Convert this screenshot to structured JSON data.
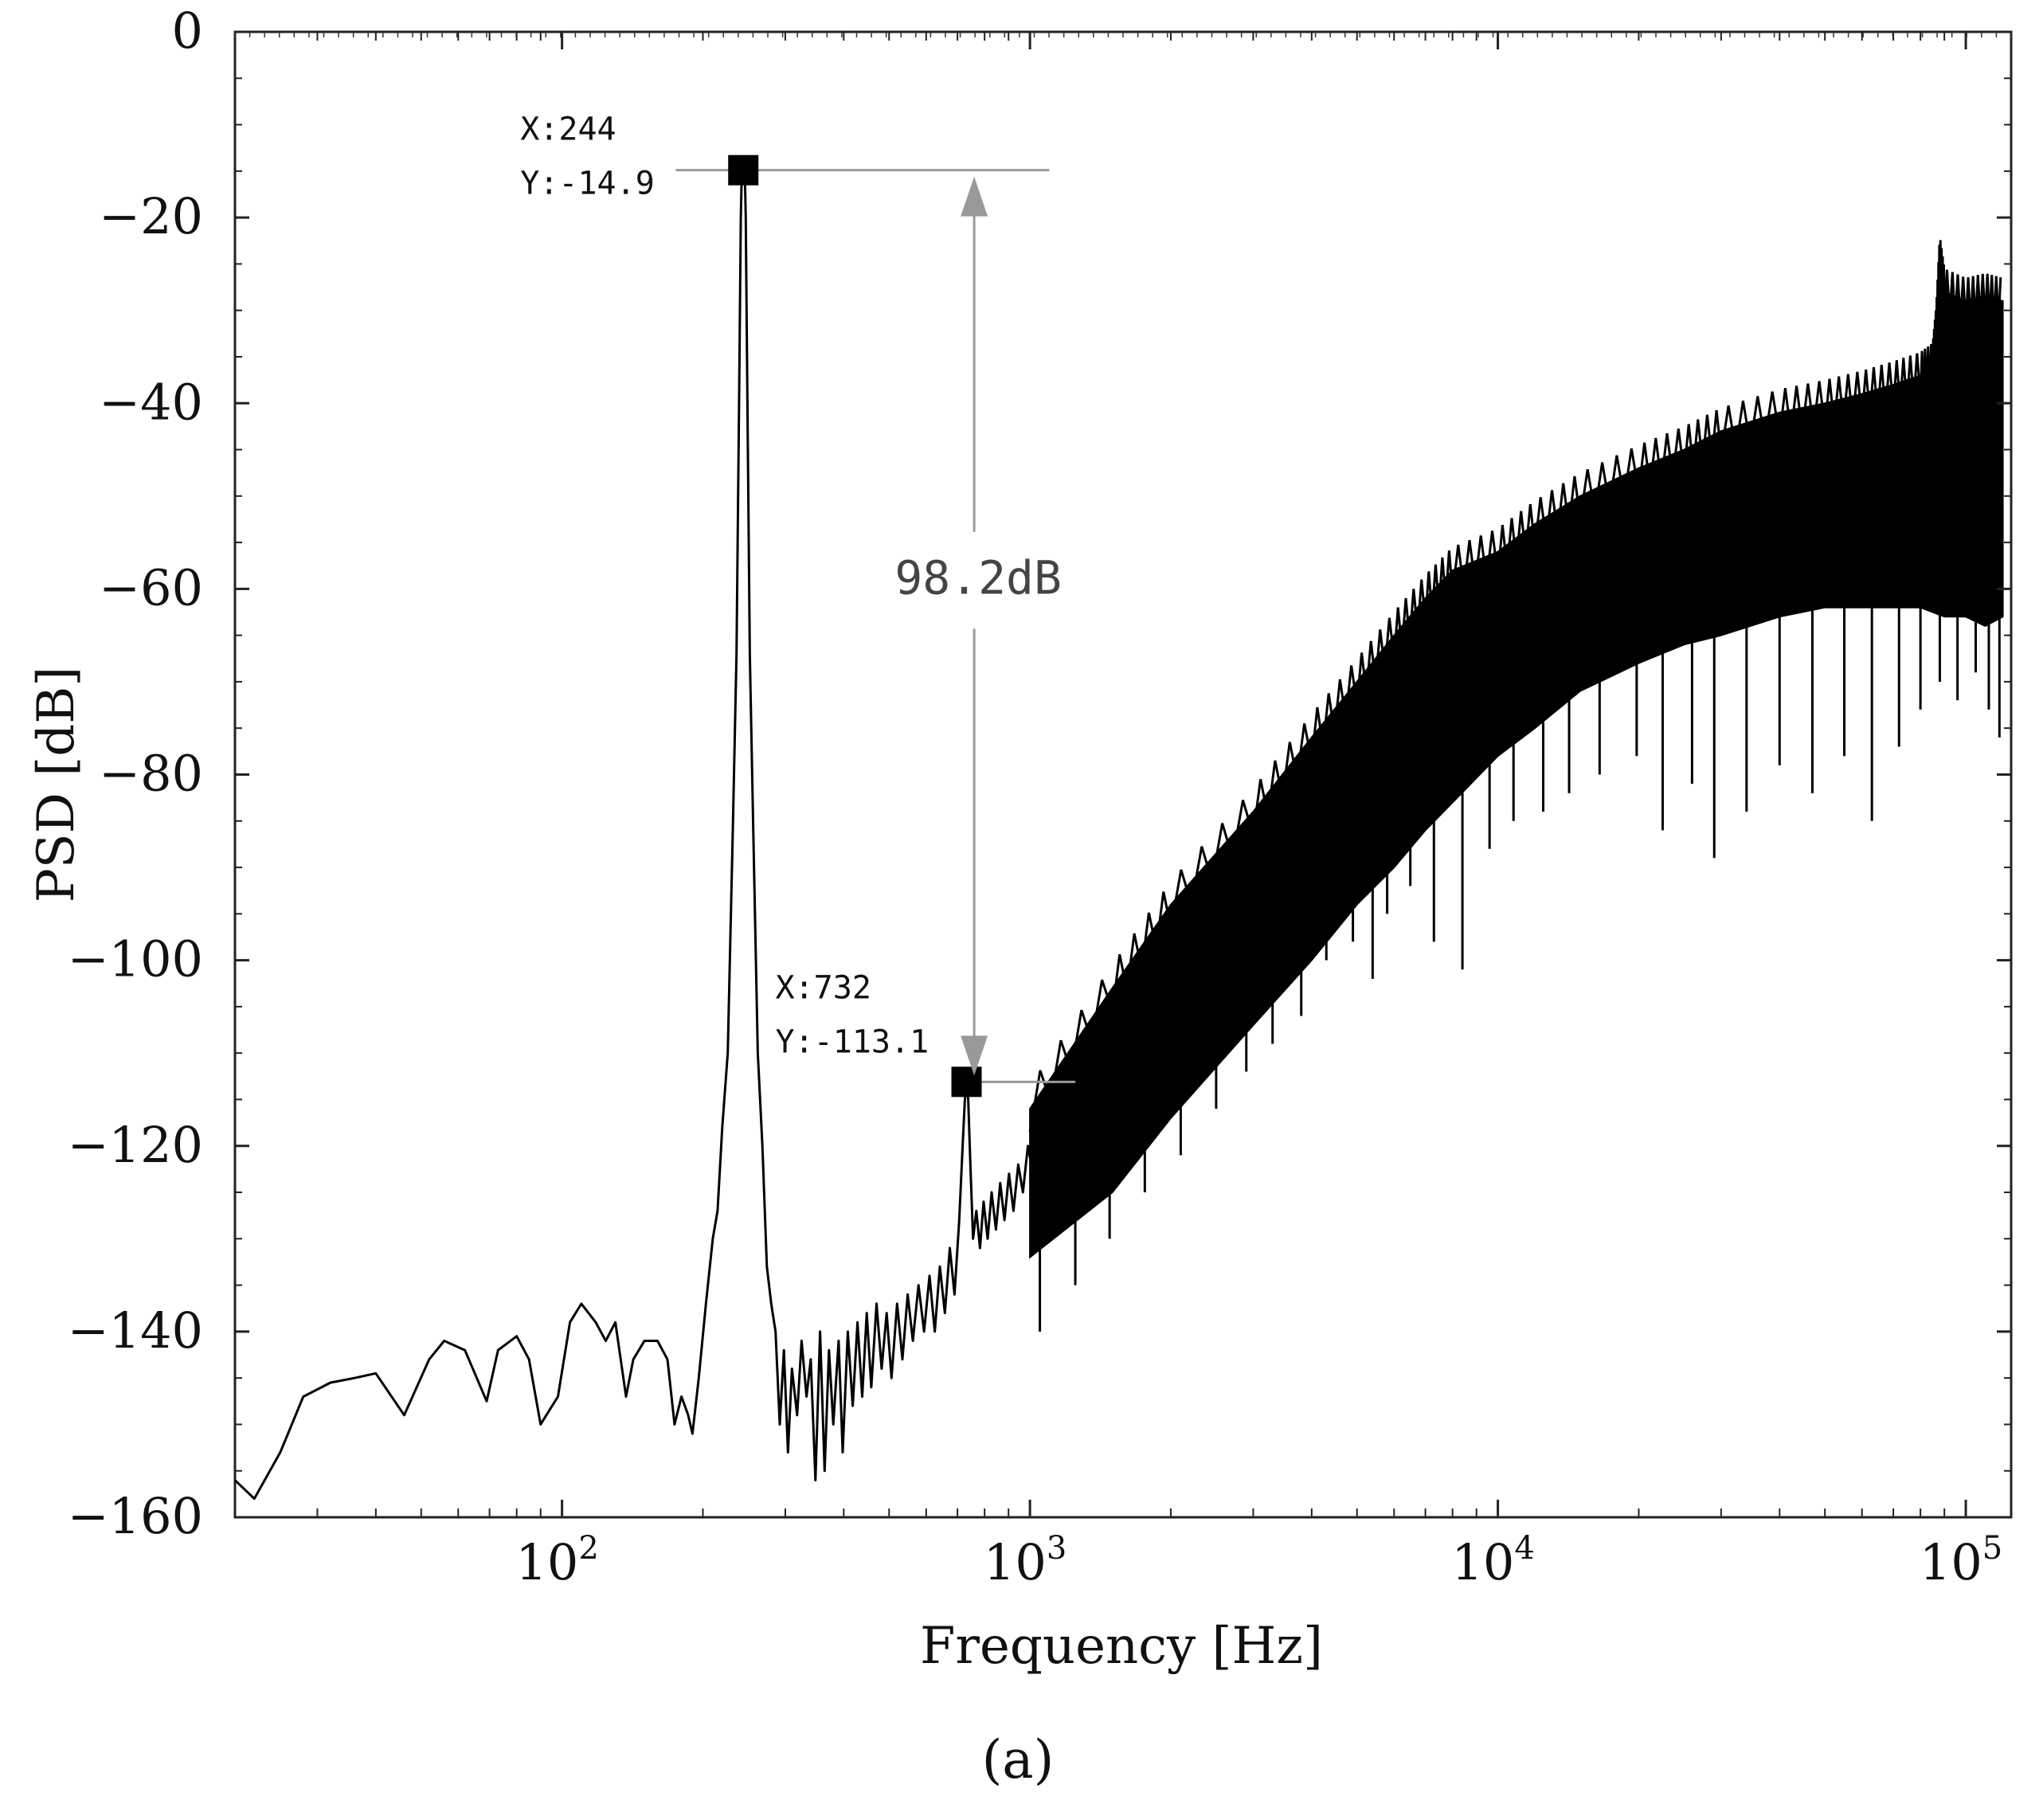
{
  "chart_data": {
    "type": "line",
    "xscale": "log",
    "xlabel": "Frequency [Hz]",
    "ylabel": "PSD [dB]",
    "xlim": [
      20,
      125000
    ],
    "ylim": [
      -160,
      0
    ],
    "y_ticks": [
      {
        "value": 0,
        "label": "0"
      },
      {
        "value": -20,
        "label": "−20"
      },
      {
        "value": -40,
        "label": "−40"
      },
      {
        "value": -60,
        "label": "−60"
      },
      {
        "value": -80,
        "label": "−80"
      },
      {
        "value": -100,
        "label": "−100"
      },
      {
        "value": -120,
        "label": "−120"
      },
      {
        "value": -140,
        "label": "−140"
      },
      {
        "value": -160,
        "label": "−160"
      }
    ],
    "x_ticks": [
      {
        "value": 100,
        "base": "10",
        "exp": "2"
      },
      {
        "value": 1000,
        "base": "10",
        "exp": "3"
      },
      {
        "value": 10000,
        "base": "10",
        "exp": "4"
      },
      {
        "value": 100000,
        "base": "10",
        "exp": "5"
      }
    ],
    "series": [
      {
        "name": "PSD",
        "trace": [
          [
            20,
            -156
          ],
          [
            22,
            -158
          ],
          [
            25,
            -153
          ],
          [
            28,
            -147
          ],
          [
            32,
            -145.5
          ],
          [
            36,
            -145
          ],
          [
            40,
            -144.5
          ],
          [
            46,
            -149
          ],
          [
            52,
            -143
          ],
          [
            56,
            -141
          ],
          [
            62,
            -142
          ],
          [
            69,
            -147.5
          ],
          [
            73,
            -142
          ],
          [
            80,
            -140.5
          ],
          [
            85,
            -143
          ],
          [
            90,
            -150
          ],
          [
            98,
            -147
          ],
          [
            104,
            -139
          ],
          [
            110,
            -137
          ],
          [
            118,
            -139
          ],
          [
            124,
            -141
          ],
          [
            130,
            -139
          ],
          [
            137,
            -147
          ],
          [
            142,
            -143
          ],
          [
            150,
            -141
          ],
          [
            160,
            -141
          ],
          [
            168,
            -143
          ],
          [
            174,
            -150
          ],
          [
            180,
            -147
          ],
          [
            186,
            -149
          ],
          [
            190,
            -151
          ],
          [
            196,
            -145
          ],
          [
            203,
            -137
          ],
          [
            210,
            -130
          ],
          [
            215,
            -127
          ],
          [
            220,
            -118
          ],
          [
            226,
            -110
          ],
          [
            232,
            -85
          ],
          [
            236,
            -67
          ],
          [
            239,
            -40
          ],
          [
            241,
            -20
          ],
          [
            242,
            -16
          ],
          [
            243,
            -15
          ],
          [
            244,
            -14.9
          ],
          [
            245,
            -15
          ],
          [
            246,
            -16
          ],
          [
            247,
            -20
          ],
          [
            249,
            -40
          ],
          [
            252,
            -67
          ],
          [
            256,
            -85
          ],
          [
            262,
            -110
          ],
          [
            268,
            -120
          ],
          [
            274,
            -133
          ],
          [
            280,
            -137
          ],
          [
            286,
            -140
          ],
          [
            292,
            -150
          ],
          [
            298,
            -142
          ],
          [
            304,
            -153
          ],
          [
            310,
            -144
          ],
          [
            318,
            -149
          ],
          [
            325,
            -141
          ],
          [
            333,
            -147
          ],
          [
            340,
            -143
          ],
          [
            348,
            -156
          ],
          [
            356,
            -140
          ],
          [
            364,
            -155
          ],
          [
            372,
            -142
          ],
          [
            380,
            -150
          ],
          [
            390,
            -141
          ],
          [
            398,
            -153
          ],
          [
            408,
            -140
          ],
          [
            418,
            -148
          ],
          [
            428,
            -139
          ],
          [
            438,
            -147
          ],
          [
            448,
            -138
          ],
          [
            458,
            -146
          ],
          [
            470,
            -137
          ],
          [
            482,
            -144
          ],
          [
            494,
            -138
          ],
          [
            506,
            -145
          ],
          [
            520,
            -137
          ],
          [
            534,
            -143
          ],
          [
            548,
            -136
          ],
          [
            562,
            -141
          ],
          [
            578,
            -135
          ],
          [
            594,
            -140
          ],
          [
            610,
            -134
          ],
          [
            626,
            -140
          ],
          [
            642,
            -133
          ],
          [
            658,
            -138
          ],
          [
            674,
            -131
          ],
          [
            690,
            -136
          ],
          [
            706,
            -128
          ],
          [
            718,
            -120
          ],
          [
            726,
            -115
          ],
          [
            732,
            -113.1
          ],
          [
            738,
            -115
          ],
          [
            746,
            -122
          ],
          [
            756,
            -130
          ],
          [
            768,
            -127
          ],
          [
            782,
            -131
          ],
          [
            796,
            -126
          ],
          [
            812,
            -130
          ],
          [
            828,
            -125
          ],
          [
            846,
            -129
          ],
          [
            864,
            -124
          ],
          [
            882,
            -128
          ],
          [
            902,
            -123
          ],
          [
            922,
            -127
          ],
          [
            944,
            -122
          ],
          [
            966,
            -125
          ],
          [
            990,
            -120
          ],
          [
            1015,
            -123
          ],
          [
            1040,
            -118
          ],
          [
            1070,
            -121
          ],
          [
            1100,
            -116
          ],
          [
            1140,
            -119
          ],
          [
            1180,
            -113
          ],
          [
            1220,
            -117
          ],
          [
            1270,
            -111
          ],
          [
            1320,
            -115
          ],
          [
            1380,
            -108
          ],
          [
            1440,
            -112
          ],
          [
            1510,
            -105
          ],
          [
            1580,
            -109
          ],
          [
            1660,
            -102
          ],
          [
            1750,
            -106
          ],
          [
            1840,
            -99
          ],
          [
            1940,
            -103
          ],
          [
            2050,
            -96
          ],
          [
            2170,
            -100
          ],
          [
            2300,
            -93
          ],
          [
            2440,
            -97
          ],
          [
            2590,
            -90
          ],
          [
            2760,
            -94
          ],
          [
            2940,
            -87
          ],
          [
            3140,
            -91
          ],
          [
            3360,
            -84
          ],
          [
            3600,
            -88
          ],
          [
            3860,
            -81
          ],
          [
            4150,
            -85
          ],
          [
            4470,
            -78
          ],
          [
            4820,
            -82
          ],
          [
            5200,
            -75
          ],
          [
            5620,
            -79
          ],
          [
            6080,
            -73
          ],
          [
            6600,
            -77
          ],
          [
            7180,
            -70
          ],
          [
            7820,
            -74
          ],
          [
            8520,
            -68
          ],
          [
            9300,
            -72
          ],
          [
            10200,
            -65
          ],
          [
            11200,
            -69
          ],
          [
            12300,
            -62
          ],
          [
            13600,
            -66
          ],
          [
            15000,
            -60
          ],
          [
            16600,
            -64
          ],
          [
            18400,
            -58
          ],
          [
            20400,
            -62
          ],
          [
            22700,
            -56
          ],
          [
            25300,
            -60
          ],
          [
            28200,
            -55
          ],
          [
            31500,
            -59
          ],
          [
            35200,
            -54
          ],
          [
            39400,
            -58
          ],
          [
            44200,
            -53
          ],
          [
            49500,
            -57
          ],
          [
            55500,
            -52
          ],
          [
            62300,
            -56
          ],
          [
            70000,
            -51
          ],
          [
            78600,
            -55
          ],
          [
            85000,
            -50
          ],
          [
            88000,
            -46
          ],
          [
            92000,
            -49
          ],
          [
            100000,
            -48
          ],
          [
            110000,
            -49
          ],
          [
            120000,
            -48
          ]
        ],
        "upper_envelope": [
          [
            1000,
            -116
          ],
          [
            1500,
            -103
          ],
          [
            2000,
            -94
          ],
          [
            3000,
            -84
          ],
          [
            4000,
            -76
          ],
          [
            5000,
            -70
          ],
          [
            6000,
            -65
          ],
          [
            7000,
            -61
          ],
          [
            8000,
            -58
          ],
          [
            10000,
            -56
          ],
          [
            12000,
            -53
          ],
          [
            15000,
            -50
          ],
          [
            20000,
            -47
          ],
          [
            25000,
            -45
          ],
          [
            30000,
            -43
          ],
          [
            40000,
            -41
          ],
          [
            50000,
            -40
          ],
          [
            60000,
            -39
          ],
          [
            70000,
            -38
          ],
          [
            80000,
            -37
          ],
          [
            85000,
            -36
          ],
          [
            86500,
            -32
          ],
          [
            88000,
            -24.5
          ],
          [
            90000,
            -28
          ],
          [
            100000,
            -29
          ],
          [
            110000,
            -28.5
          ],
          [
            120000,
            -29
          ]
        ],
        "lower_envelope": [
          [
            1000,
            -132
          ],
          [
            1500,
            -125
          ],
          [
            2000,
            -117
          ],
          [
            3000,
            -107
          ],
          [
            4000,
            -100
          ],
          [
            5000,
            -94
          ],
          [
            6000,
            -90
          ],
          [
            7000,
            -86
          ],
          [
            8000,
            -83
          ],
          [
            10000,
            -78
          ],
          [
            12000,
            -75
          ],
          [
            15000,
            -71
          ],
          [
            20000,
            -68
          ],
          [
            25000,
            -66
          ],
          [
            30000,
            -65
          ],
          [
            40000,
            -63
          ],
          [
            50000,
            -62
          ],
          [
            60000,
            -62
          ],
          [
            70000,
            -62
          ],
          [
            80000,
            -62
          ],
          [
            90000,
            -63
          ],
          [
            100000,
            -63
          ],
          [
            110000,
            -64
          ],
          [
            120000,
            -63
          ]
        ],
        "down_spikes": [
          [
            1050,
            -140
          ],
          [
            1250,
            -135
          ],
          [
            1480,
            -130
          ],
          [
            1760,
            -125
          ],
          [
            2100,
            -121
          ],
          [
            2500,
            -116
          ],
          [
            2900,
            -112
          ],
          [
            3300,
            -109
          ],
          [
            3800,
            -106
          ],
          [
            4300,
            -100
          ],
          [
            4900,
            -98
          ],
          [
            5400,
            -102
          ],
          [
            5800,
            -95
          ],
          [
            6500,
            -92
          ],
          [
            7300,
            -98
          ],
          [
            8400,
            -101
          ],
          [
            9600,
            -88
          ],
          [
            10800,
            -85
          ],
          [
            12500,
            -84
          ],
          [
            14200,
            -82
          ],
          [
            16500,
            -80
          ],
          [
            19800,
            -78
          ],
          [
            22500,
            -86
          ],
          [
            26000,
            -81
          ],
          [
            29000,
            -89
          ],
          [
            34000,
            -84
          ],
          [
            40000,
            -79
          ],
          [
            47000,
            -82
          ],
          [
            55000,
            -78
          ],
          [
            63000,
            -85
          ],
          [
            72000,
            -77
          ],
          [
            80000,
            -73
          ],
          [
            88000,
            -70
          ],
          [
            96000,
            -72
          ],
          [
            105000,
            -69
          ],
          [
            112000,
            -73
          ],
          [
            118000,
            -76
          ]
        ]
      }
    ],
    "data_tips": [
      {
        "x": 244,
        "y": -14.9,
        "label_x": "X:244",
        "label_y": "Y:-14.9"
      },
      {
        "x": 732,
        "y": -113.1,
        "label_x": "X:732",
        "label_y": "Y:-113.1"
      }
    ],
    "annotation": {
      "text": "98.2dB",
      "from_y": -14.9,
      "to_y": -113.1,
      "x": 1000
    },
    "caption": "(a)"
  }
}
